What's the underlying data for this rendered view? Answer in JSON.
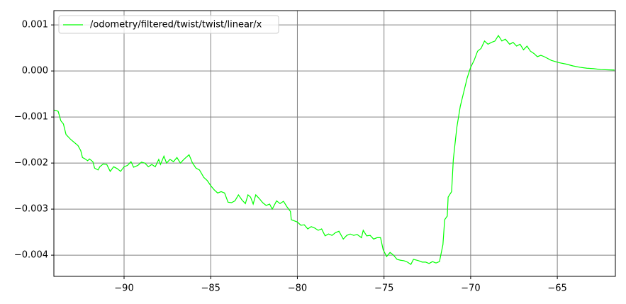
{
  "chart_data": {
    "type": "line",
    "x": [
      -94.05,
      -93.9,
      -93.8,
      -93.65,
      -93.5,
      -93.35,
      -93.07,
      -92.66,
      -92.5,
      -92.4,
      -92.25,
      -92.1,
      -92.0,
      -91.8,
      -91.7,
      -91.5,
      -91.4,
      -91.2,
      -91.0,
      -90.8,
      -90.6,
      -90.4,
      -90.2,
      -90.0,
      -89.8,
      -89.6,
      -89.45,
      -89.2,
      -89.0,
      -88.8,
      -88.6,
      -88.4,
      -88.2,
      -88.0,
      -87.9,
      -87.7,
      -87.55,
      -87.35,
      -87.15,
      -86.95,
      -86.75,
      -86.55,
      -86.25,
      -86.05,
      -85.85,
      -85.65,
      -85.4,
      -85.2,
      -85.0,
      -84.8,
      -84.6,
      -84.4,
      -84.2,
      -84.0,
      -83.8,
      -83.6,
      -83.4,
      -83.2,
      -83.0,
      -82.85,
      -82.7,
      -82.55,
      -82.4,
      -82.2,
      -82.0,
      -81.8,
      -81.6,
      -81.45,
      -81.2,
      -81.0,
      -80.8,
      -80.6,
      -80.4,
      -80.35,
      -80.0,
      -79.8,
      -79.6,
      -79.4,
      -79.2,
      -79.0,
      -78.8,
      -78.6,
      -78.4,
      -78.2,
      -78.0,
      -77.8,
      -77.6,
      -77.35,
      -77.15,
      -76.95,
      -76.75,
      -76.55,
      -76.3,
      -76.2,
      -76.0,
      -75.8,
      -75.6,
      -75.4,
      -75.2,
      -75.05,
      -74.85,
      -74.65,
      -74.45,
      -74.25,
      -74.05,
      -73.85,
      -73.65,
      -73.45,
      -73.3,
      -73.0,
      -72.8,
      -72.6,
      -72.4,
      -72.2,
      -72.0,
      -71.8,
      -71.6,
      -71.5,
      -71.35,
      -71.3,
      -71.1,
      -71.0,
      -70.8,
      -70.6,
      -70.4,
      -70.2,
      -70.0,
      -69.8,
      -69.6,
      -69.4,
      -69.2,
      -69.0,
      -68.8,
      -68.6,
      -68.4,
      -68.2,
      -68.0,
      -67.75,
      -67.55,
      -67.35,
      -67.15,
      -66.95,
      -66.75,
      -66.55,
      -66.35,
      -66.15,
      -65.95,
      -65.75,
      -65.35,
      -64.9,
      -64.5,
      -64.1,
      -63.7,
      -63.3,
      -62.9,
      -62.5,
      -61.7
    ],
    "series": [
      {
        "name": "/odometry/filtered/twist/twist/linear/x",
        "color": "#00ff00",
        "values": [
          -0.00085,
          -0.00086,
          -0.00088,
          -0.00108,
          -0.00115,
          -0.00138,
          -0.00149,
          -0.00162,
          -0.00173,
          -0.00188,
          -0.00191,
          -0.00195,
          -0.00191,
          -0.00197,
          -0.00211,
          -0.00215,
          -0.00208,
          -0.00202,
          -0.00203,
          -0.00218,
          -0.00208,
          -0.00212,
          -0.00218,
          -0.00208,
          -0.00205,
          -0.00197,
          -0.00209,
          -0.00205,
          -0.00198,
          -0.002,
          -0.00208,
          -0.00203,
          -0.00208,
          -0.00192,
          -0.00203,
          -0.00185,
          -0.002,
          -0.00192,
          -0.00197,
          -0.00188,
          -0.002,
          -0.00192,
          -0.00182,
          -0.002,
          -0.00211,
          -0.00215,
          -0.00231,
          -0.00238,
          -0.00249,
          -0.00258,
          -0.00265,
          -0.00262,
          -0.00265,
          -0.00285,
          -0.00286,
          -0.00282,
          -0.00269,
          -0.0028,
          -0.00288,
          -0.00269,
          -0.00274,
          -0.00289,
          -0.00269,
          -0.00277,
          -0.00286,
          -0.00292,
          -0.00289,
          -0.003,
          -0.00282,
          -0.00288,
          -0.00283,
          -0.00295,
          -0.00305,
          -0.00323,
          -0.00328,
          -0.00335,
          -0.00334,
          -0.00343,
          -0.00338,
          -0.00341,
          -0.00346,
          -0.00343,
          -0.00358,
          -0.00354,
          -0.00357,
          -0.00351,
          -0.00348,
          -0.00365,
          -0.00357,
          -0.00354,
          -0.00357,
          -0.00355,
          -0.00362,
          -0.00346,
          -0.00358,
          -0.00357,
          -0.00365,
          -0.00362,
          -0.00362,
          -0.00388,
          -0.00403,
          -0.00394,
          -0.004,
          -0.00409,
          -0.00411,
          -0.00412,
          -0.00415,
          -0.0042,
          -0.00409,
          -0.00412,
          -0.00415,
          -0.00415,
          -0.00418,
          -0.00414,
          -0.00417,
          -0.00414,
          -0.00377,
          -0.00323,
          -0.00315,
          -0.00274,
          -0.00262,
          -0.00192,
          -0.00123,
          -0.00077,
          -0.00046,
          -0.00015,
          8e-05,
          0.00023,
          0.00043,
          0.00049,
          0.00065,
          0.00058,
          0.00062,
          0.00065,
          0.00077,
          0.00065,
          0.00069,
          0.00058,
          0.00062,
          0.00054,
          0.00058,
          0.00046,
          0.00054,
          0.00043,
          0.00038,
          0.00031,
          0.00034,
          0.00031,
          0.00023,
          0.00018,
          0.00015,
          0.00011,
          8e-05,
          6e-05,
          5e-05,
          3e-05,
          2e-05
        ]
      }
    ],
    "xlim": [
      -94.05,
      -61.65
    ],
    "ylim": [
      -0.00446,
      0.00131
    ],
    "xticks": [
      {
        "value": -90,
        "label": "−90"
      },
      {
        "value": -85,
        "label": "−85"
      },
      {
        "value": -80,
        "label": "−80"
      },
      {
        "value": -75,
        "label": "−75"
      },
      {
        "value": -70,
        "label": "−70"
      },
      {
        "value": -65,
        "label": "−65"
      }
    ],
    "yticks": [
      {
        "value": -0.004,
        "label": "−0.004"
      },
      {
        "value": -0.003,
        "label": "−0.003"
      },
      {
        "value": -0.002,
        "label": "−0.002"
      },
      {
        "value": -0.001,
        "label": "−0.001"
      },
      {
        "value": 0,
        "label": "0.000"
      },
      {
        "value": 0.001,
        "label": "0.001"
      }
    ],
    "grid": true,
    "legend": "upper-left"
  }
}
